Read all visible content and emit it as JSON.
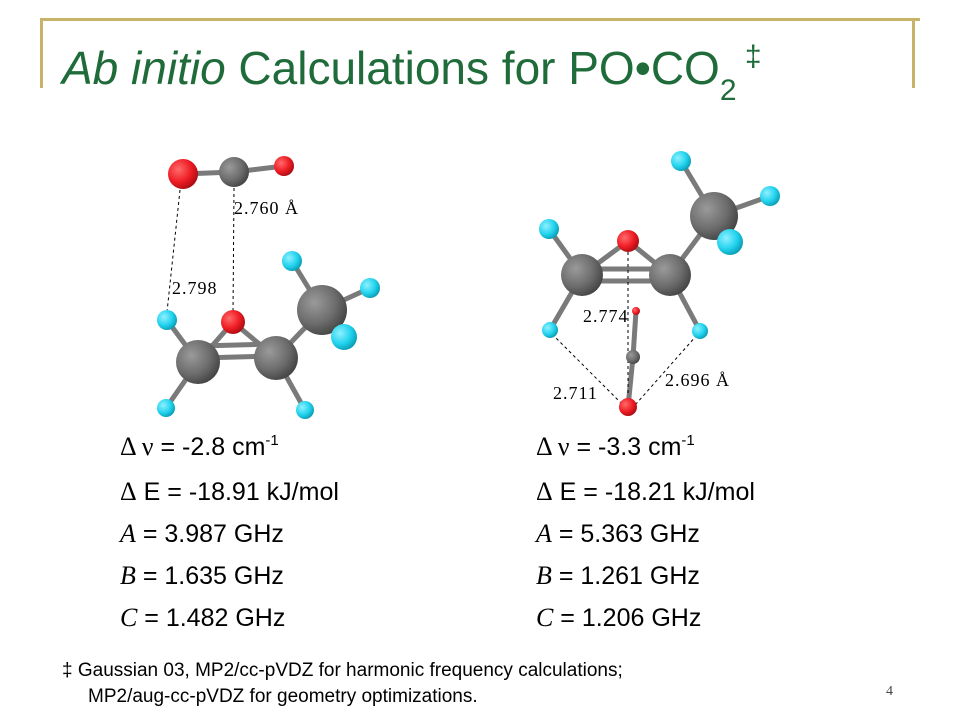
{
  "title": {
    "italic": "Ab initio",
    "main": " Calculations for PO•CO",
    "subscript": "2",
    "superscript": " ‡"
  },
  "left_structure": {
    "distances": [
      "2.760 Å",
      "2.798"
    ],
    "stats": {
      "dnu_label": "Δ ν",
      "dnu_value": " = -2.8 cm",
      "dnu_exp": "-1",
      "de_label": "Δ",
      "de_value": " E = -18.91 kJ/mol",
      "a_label": "A",
      "a_value": " = 3.987 GHz",
      "b_label": "B",
      "b_value": " = 1.635 GHz",
      "c_label": "C",
      "c_value": " = 1.482 GHz"
    }
  },
  "right_structure": {
    "distances": [
      "2.774",
      "2.696 Å",
      "2.711"
    ],
    "stats": {
      "dnu_label": "Δ ν",
      "dnu_value": " = -3.3 cm",
      "dnu_exp": "-1",
      "de_label": "Δ",
      "de_value": " E = -18.21 kJ/mol",
      "a_label": "A",
      "a_value": " = 5.363 GHz",
      "b_label": "B",
      "b_value": " = 1.261 GHz",
      "c_label": "C",
      "c_value": " = 1.206 GHz"
    }
  },
  "footnote": {
    "line1": "‡ Gaussian 03, MP2/cc-pVDZ for harmonic frequency calculations;",
    "line2": "MP2/aug-cc-pVDZ for geometry optimizations."
  },
  "page_number": "4",
  "colors": {
    "title": "#1f6b3a",
    "frame": "#c8b468",
    "oxygen": "#ee1c24",
    "carbon": "#6d6d6d",
    "hydrogen": "#22d3ee"
  }
}
